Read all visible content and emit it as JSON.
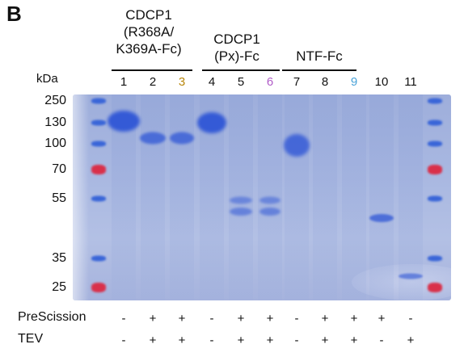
{
  "panel_letter": "B",
  "groups": [
    {
      "label": "CDCP1\n(R368A/\nK369A-Fc)"
    },
    {
      "label": "CDCP1\n(Px)-Fc"
    },
    {
      "label": "NTF-Fc"
    }
  ],
  "kda_label": "kDa",
  "lanes": [
    {
      "label": "1",
      "color": "#111111"
    },
    {
      "label": "2",
      "color": "#111111"
    },
    {
      "label": "3",
      "color": "#b8860b"
    },
    {
      "label": "4",
      "color": "#111111"
    },
    {
      "label": "5",
      "color": "#111111"
    },
    {
      "label": "6",
      "color": "#b05cc8"
    },
    {
      "label": "7",
      "color": "#111111"
    },
    {
      "label": "8",
      "color": "#111111"
    },
    {
      "label": "9",
      "color": "#4aa3d9"
    },
    {
      "label": "10",
      "color": "#111111"
    },
    {
      "label": "11",
      "color": "#111111"
    }
  ],
  "markers": [
    "250",
    "130",
    "100",
    "70",
    "55",
    "35",
    "25"
  ],
  "conditions": [
    {
      "label": "PreScission",
      "values": [
        "-",
        "+",
        "+",
        "-",
        "+",
        "+",
        "-",
        "+",
        "+",
        "+",
        "-"
      ]
    },
    {
      "label": "TEV",
      "values": [
        "-",
        "+",
        "+",
        "-",
        "+",
        "+",
        "-",
        "+",
        "+",
        "-",
        "+"
      ]
    }
  ],
  "colors": {
    "band_blue": "#2f56d6",
    "ladder_blue": "#3a66d8",
    "ladder_red": "#d9304a",
    "gel_background": "#a9b8e1"
  }
}
